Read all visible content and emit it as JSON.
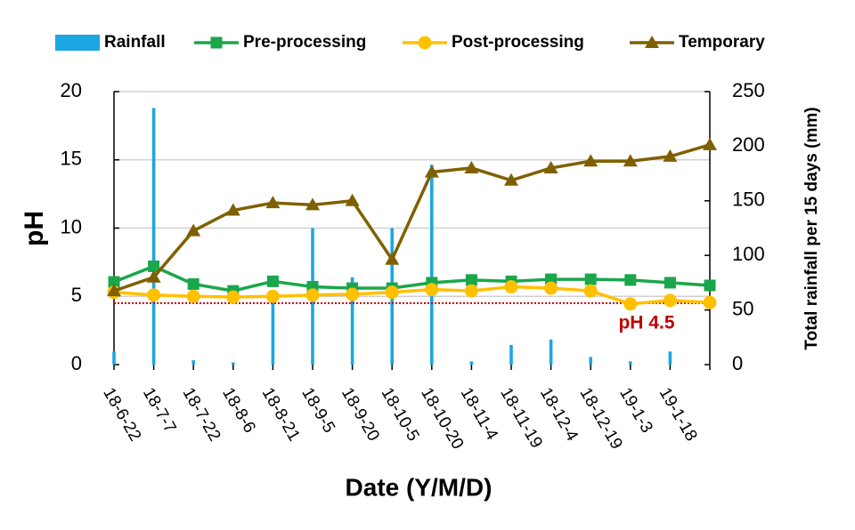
{
  "chart_data": {
    "type": "line",
    "xlabel": "Date (Y/M/D)",
    "ylabel": "pH",
    "y2label": "Total rainfall per 15 days (mm)",
    "categories": [
      "18-6-22",
      "18-7-7",
      "18-7-22",
      "18-8-6",
      "18-8-21",
      "18-9-5",
      "18-9-20",
      "18-10-5",
      "18-10-20",
      "18-11-4",
      "18-11-19",
      "18-12-4",
      "18-12-19",
      "19-1-3",
      "19-1-18",
      null
    ],
    "ylim": [
      0,
      20
    ],
    "yticks": [
      0,
      5,
      10,
      15,
      20
    ],
    "y2lim": [
      0,
      250
    ],
    "y2ticks": [
      0,
      50,
      100,
      150,
      200,
      250
    ],
    "grid": true,
    "legend": "top",
    "series": [
      {
        "name": "Rainfall",
        "type": "bar",
        "axis": "y2",
        "color": "#1ba7e1",
        "values": [
          12,
          235,
          4,
          2,
          62,
          125,
          80,
          125,
          183,
          3,
          18,
          23,
          7,
          3,
          12,
          0
        ]
      },
      {
        "name": "Pre-processing",
        "type": "line",
        "marker": "square",
        "color": "#1aa64b",
        "values": [
          6.06,
          7.2,
          5.9,
          5.4,
          6.1,
          5.7,
          5.6,
          5.6,
          6.0,
          6.2,
          6.1,
          6.25,
          6.25,
          6.2,
          6.0,
          5.8
        ]
      },
      {
        "name": "Post-processing",
        "type": "line",
        "marker": "circle",
        "color": "#ffc000",
        "values": [
          5.3,
          5.1,
          5.0,
          4.95,
          5.0,
          5.1,
          5.15,
          5.3,
          5.5,
          5.4,
          5.7,
          5.6,
          5.4,
          4.45,
          4.7,
          4.55
        ]
      },
      {
        "name": "Temporary",
        "type": "line",
        "marker": "triangle",
        "color": "#7f6000",
        "values": [
          5.4,
          6.4,
          9.8,
          11.3,
          11.85,
          11.7,
          12.0,
          7.7,
          14.1,
          14.4,
          13.5,
          14.4,
          14.9,
          14.9,
          15.25,
          16.1
        ]
      }
    ],
    "reference_line": {
      "value": 4.5,
      "label": "pH 4.5",
      "color": "#c00000"
    }
  }
}
